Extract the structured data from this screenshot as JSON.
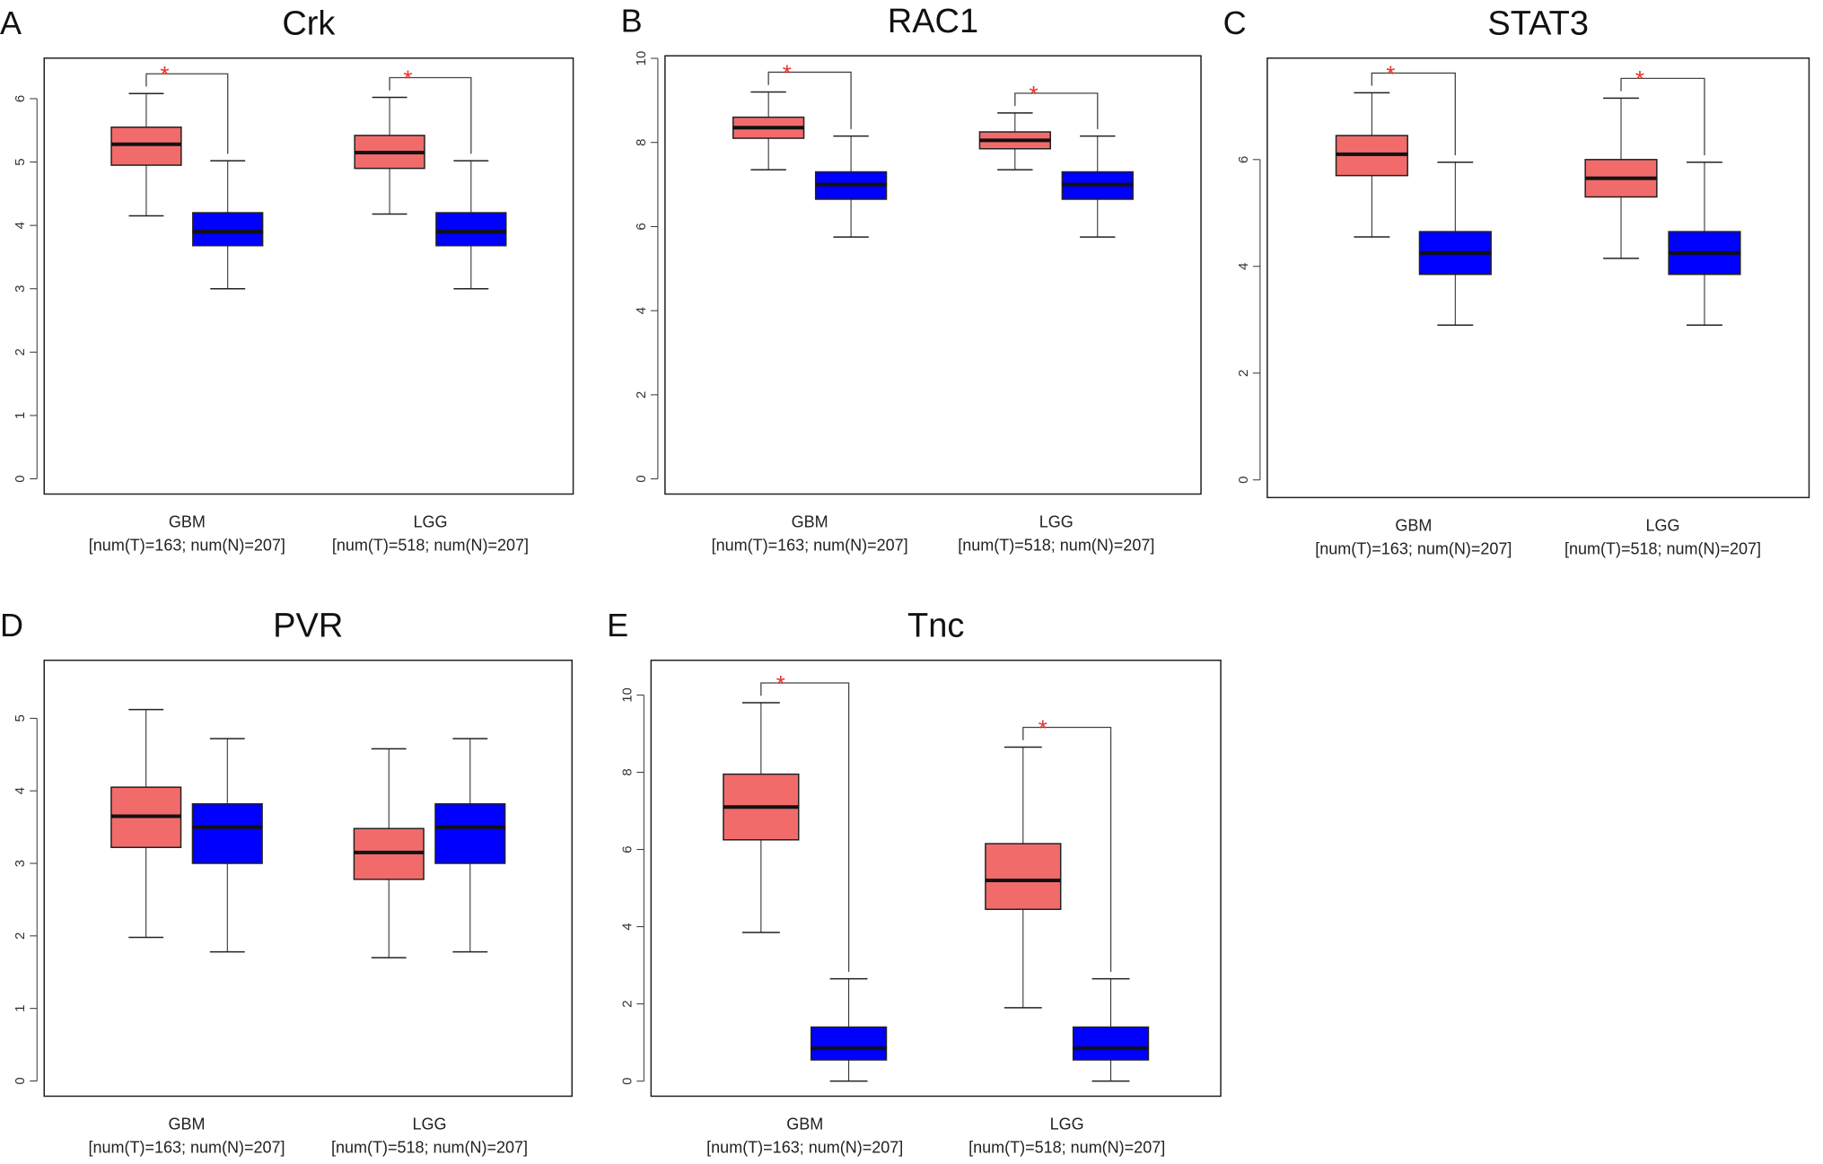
{
  "chart_data": [
    {
      "type": "box",
      "panel": "A",
      "title": "Crk",
      "categories": [
        "GBM",
        "LGG"
      ],
      "category_notes": [
        "[num(T)=163; num(N)=207]",
        "[num(T)=518; num(N)=207]"
      ],
      "significance": [
        "*",
        "*"
      ],
      "ylim": [
        -0.24,
        6.64
      ],
      "yticks": [
        0,
        1,
        2,
        3,
        4,
        5,
        6
      ],
      "series": [
        {
          "color": "#f26b6b",
          "boxes": [
            {
              "whislo": 4.15,
              "q1": 4.95,
              "med": 5.28,
              "q3": 5.55,
              "whishi": 6.08
            },
            {
              "whislo": 4.18,
              "q1": 4.9,
              "med": 5.15,
              "q3": 5.42,
              "whishi": 6.02
            }
          ]
        },
        {
          "color": "#0000ff",
          "boxes": [
            {
              "whislo": 3.0,
              "q1": 3.68,
              "med": 3.9,
              "q3": 4.2,
              "whishi": 5.02
            },
            {
              "whislo": 3.0,
              "q1": 3.68,
              "med": 3.9,
              "q3": 4.2,
              "whishi": 5.02
            }
          ]
        }
      ]
    },
    {
      "type": "box",
      "panel": "B",
      "title": "RAC1",
      "categories": [
        "GBM",
        "LGG"
      ],
      "category_notes": [
        "[num(T)=163; num(N)=207]",
        "[num(T)=518; num(N)=207]"
      ],
      "significance": [
        "*",
        "*"
      ],
      "ylim": [
        -0.36,
        10.06
      ],
      "yticks": [
        0,
        2,
        4,
        6,
        8,
        10
      ],
      "series": [
        {
          "color": "#f26b6b",
          "boxes": [
            {
              "whislo": 7.35,
              "q1": 8.1,
              "med": 8.35,
              "q3": 8.6,
              "whishi": 9.2
            },
            {
              "whislo": 7.35,
              "q1": 7.85,
              "med": 8.05,
              "q3": 8.25,
              "whishi": 8.7
            }
          ]
        },
        {
          "color": "#0000ff",
          "boxes": [
            {
              "whislo": 5.75,
              "q1": 6.65,
              "med": 7.0,
              "q3": 7.3,
              "whishi": 8.15
            },
            {
              "whislo": 5.75,
              "q1": 6.65,
              "med": 7.0,
              "q3": 7.3,
              "whishi": 8.15
            }
          ]
        }
      ]
    },
    {
      "type": "box",
      "panel": "C",
      "title": "STAT3",
      "categories": [
        "GBM",
        "LGG"
      ],
      "category_notes": [
        "[num(T)=163; num(N)=207]",
        "[num(T)=518; num(N)=207]"
      ],
      "significance": [
        "*",
        "*"
      ],
      "ylim": [
        -0.33,
        7.9
      ],
      "yticks": [
        0,
        2,
        4,
        6
      ],
      "series": [
        {
          "color": "#f26b6b",
          "boxes": [
            {
              "whislo": 4.55,
              "q1": 5.7,
              "med": 6.1,
              "q3": 6.45,
              "whishi": 7.25
            },
            {
              "whislo": 4.15,
              "q1": 5.3,
              "med": 5.65,
              "q3": 6.0,
              "whishi": 7.15
            }
          ]
        },
        {
          "color": "#0000ff",
          "boxes": [
            {
              "whislo": 2.9,
              "q1": 3.85,
              "med": 4.25,
              "q3": 4.65,
              "whishi": 5.95
            },
            {
              "whislo": 2.9,
              "q1": 3.85,
              "med": 4.25,
              "q3": 4.65,
              "whishi": 5.95
            }
          ]
        }
      ]
    },
    {
      "type": "box",
      "panel": "D",
      "title": "PVR",
      "categories": [
        "GBM",
        "LGG"
      ],
      "category_notes": [
        "[num(T)=163; num(N)=207]",
        "[num(T)=518; num(N)=207]"
      ],
      "ylim": [
        -0.21,
        5.8
      ],
      "yticks": [
        0,
        1,
        2,
        3,
        4,
        5
      ],
      "series": [
        {
          "color": "#f26b6b",
          "boxes": [
            {
              "whislo": 1.98,
              "q1": 3.22,
              "med": 3.65,
              "q3": 4.05,
              "whishi": 5.12
            },
            {
              "whislo": 1.7,
              "q1": 2.78,
              "med": 3.15,
              "q3": 3.48,
              "whishi": 4.58
            }
          ]
        },
        {
          "color": "#0000ff",
          "boxes": [
            {
              "whislo": 1.78,
              "q1": 3.0,
              "med": 3.5,
              "q3": 3.82,
              "whishi": 4.72
            },
            {
              "whislo": 1.78,
              "q1": 3.0,
              "med": 3.5,
              "q3": 3.82,
              "whishi": 4.72
            }
          ]
        }
      ]
    },
    {
      "type": "box",
      "panel": "E",
      "title": "Tnc",
      "categories": [
        "GBM",
        "LGG"
      ],
      "category_notes": [
        "[num(T)=163; num(N)=207]",
        "[num(T)=518; num(N)=207]"
      ],
      "significance": [
        "*",
        "*"
      ],
      "ylim": [
        -0.39,
        10.9
      ],
      "yticks": [
        0,
        2,
        4,
        6,
        8,
        10
      ],
      "series": [
        {
          "color": "#f26b6b",
          "boxes": [
            {
              "whislo": 3.85,
              "q1": 6.25,
              "med": 7.1,
              "q3": 7.95,
              "whishi": 9.8
            },
            {
              "whislo": 1.9,
              "q1": 4.45,
              "med": 5.2,
              "q3": 6.15,
              "whishi": 8.65
            }
          ]
        },
        {
          "color": "#0000ff",
          "boxes": [
            {
              "whislo": 0.0,
              "q1": 0.55,
              "med": 0.85,
              "q3": 1.4,
              "whishi": 2.65
            },
            {
              "whislo": 0.0,
              "q1": 0.55,
              "med": 0.85,
              "q3": 1.4,
              "whishi": 2.65
            }
          ]
        }
      ]
    }
  ]
}
